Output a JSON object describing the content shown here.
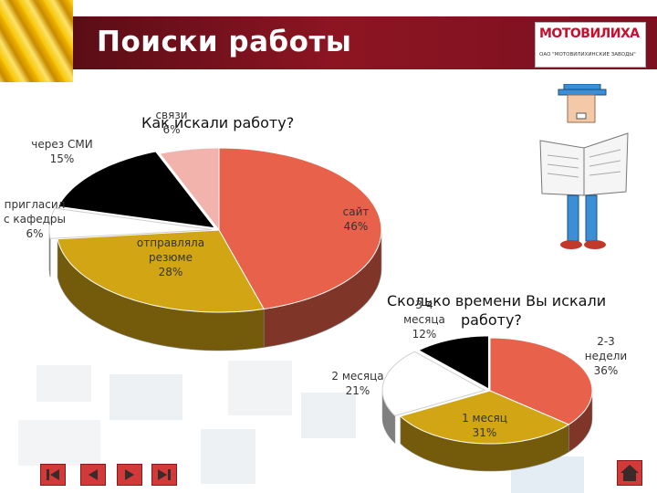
{
  "slide": {
    "title": "Поиски работы",
    "logo": {
      "brand": "МОТОВИЛИХА",
      "subtitle": "ОАО \"МОТОВИЛИХИНСКИЕ ЗАВОДЫ\""
    }
  },
  "colors": {
    "red_band": "#8d1522",
    "orange_red": "#e8614a",
    "gold": "#d2a514",
    "black": "#000000",
    "white": "#ffffff",
    "pink": "#f1b3ab",
    "nav_red": "#d23a3a"
  },
  "chart_data": [
    {
      "type": "pie",
      "title": "Как искали работу?",
      "slices": [
        {
          "label": "сайт",
          "value": 46,
          "color": "#e8614a"
        },
        {
          "label": "отправляла резюме",
          "value": 28,
          "color": "#d2a514"
        },
        {
          "label": "пригласили с кафедры",
          "value": 6,
          "color": "#ffffff"
        },
        {
          "label": "через СМИ",
          "value": 15,
          "color": "#000000"
        },
        {
          "label": "связи",
          "value": 6,
          "color": "#f1b3ab"
        }
      ],
      "data_labels": [
        {
          "lines": [
            "сайт",
            "46%"
          ]
        },
        {
          "lines": [
            "отправляла",
            "резюме",
            "28%"
          ]
        },
        {
          "lines": [
            "пригласил",
            "с кафедры",
            "6%"
          ]
        },
        {
          "lines": [
            "через СМИ",
            "15%"
          ]
        },
        {
          "lines": [
            "связи",
            "6%"
          ]
        }
      ],
      "style": "3d"
    },
    {
      "type": "pie",
      "title": [
        "Сколько времени Вы искали",
        "работу?"
      ],
      "slices": [
        {
          "label": "2-3 недели",
          "value": 36,
          "color": "#e8614a"
        },
        {
          "label": "1 месяц",
          "value": 31,
          "color": "#d2a514"
        },
        {
          "label": "2 месяца",
          "value": 21,
          "color": "#ffffff"
        },
        {
          "label": "3-4 месяца",
          "value": 12,
          "color": "#000000"
        }
      ],
      "data_labels": [
        {
          "lines": [
            "2-3",
            "недели",
            "36%"
          ]
        },
        {
          "lines": [
            "1 месяц",
            "31%"
          ]
        },
        {
          "lines": [
            "2 месяца",
            "21%"
          ]
        },
        {
          "lines": [
            "3-4",
            "месяца",
            "12%"
          ]
        }
      ],
      "style": "3d"
    }
  ],
  "navigation": {
    "buttons": [
      {
        "icon": "first-icon"
      },
      {
        "icon": "previous-icon"
      },
      {
        "icon": "next-icon"
      },
      {
        "icon": "last-icon"
      }
    ],
    "home_icon": "home-icon"
  }
}
